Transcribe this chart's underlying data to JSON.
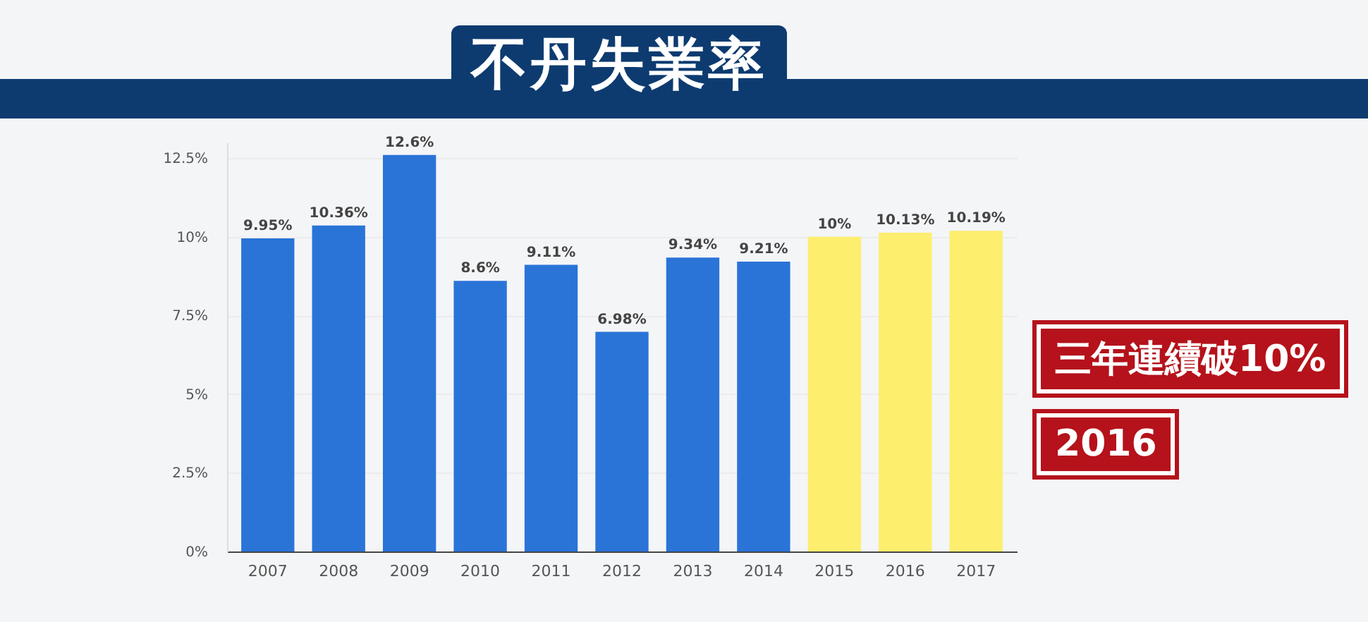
{
  "chart_data": {
    "type": "bar",
    "title": "不丹失業率",
    "categories": [
      "2007",
      "2008",
      "2009",
      "2010",
      "2011",
      "2012",
      "2013",
      "2014",
      "2015",
      "2016",
      "2017"
    ],
    "values": [
      9.95,
      10.36,
      12.6,
      8.6,
      9.11,
      6.98,
      9.34,
      9.21,
      10,
      10.13,
      10.19
    ],
    "value_labels": [
      "9.95%",
      "10.36%",
      "12.6%",
      "8.6%",
      "9.11%",
      "6.98%",
      "9.34%",
      "9.21%",
      "10%",
      "10.13%",
      "10.19%"
    ],
    "colors": [
      "#2a74d8",
      "#2a74d8",
      "#2a74d8",
      "#2a74d8",
      "#2a74d8",
      "#2a74d8",
      "#2a74d8",
      "#2a74d8",
      "#fdee6e",
      "#fdee6e",
      "#fdee6e"
    ],
    "ylim": [
      0,
      13
    ],
    "yticks": [
      {
        "value": 0,
        "label": "0%"
      },
      {
        "value": 2.5,
        "label": "2.5%"
      },
      {
        "value": 5,
        "label": "5%"
      },
      {
        "value": 7.5,
        "label": "7.5%"
      },
      {
        "value": 10,
        "label": "10%"
      },
      {
        "value": 12.5,
        "label": "12.5%"
      }
    ],
    "grid": "y",
    "annotations": [
      "三年連續破10%",
      "2016"
    ]
  }
}
